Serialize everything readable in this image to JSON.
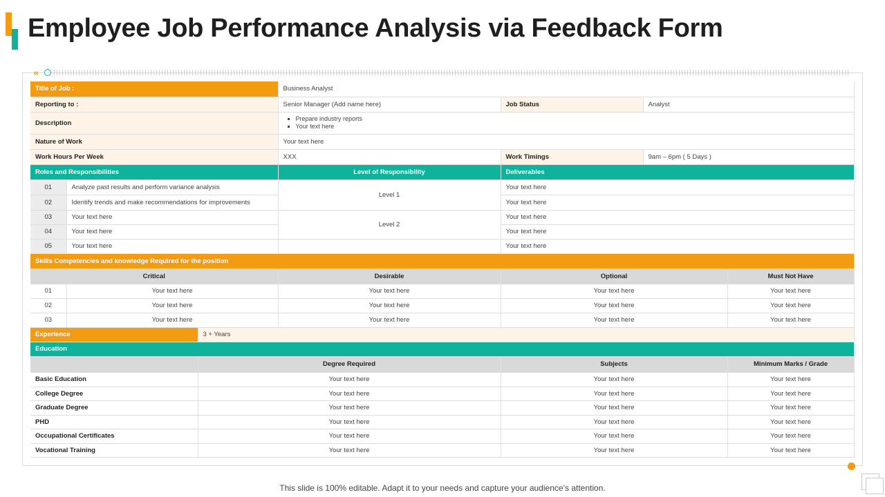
{
  "title": "Employee Job Performance Analysis via Feedback Form",
  "job": {
    "title_label": "Title of Job :",
    "title_value": "Business Analyst",
    "reporting_label": "Reporting to :",
    "reporting_value": "Senior Manager  (Add name here)",
    "status_label": "Job Status",
    "status_value": "Analyst",
    "description_label": "Description",
    "description_items": [
      "Prepare  industry reports",
      "Your text here"
    ],
    "nature_label": "Nature of Work",
    "nature_value": "Your text here",
    "hours_label": "Work Hours Per Week",
    "hours_value": "XXX",
    "timings_label": "Work Timings",
    "timings_value": "9am – 6pm ( 5 Days )"
  },
  "roles": {
    "header": "Roles and Responsibilities",
    "level_header": "Level of Responsibility",
    "deliverables_header": "Deliverables",
    "rows": [
      {
        "num": "01",
        "text": "Analyze past results and perform variance analysis",
        "deliverable": "Your text here"
      },
      {
        "num": "02",
        "text": "Identify trends and make recommendations  for improvements",
        "deliverable": "Your text here"
      },
      {
        "num": "03",
        "text": "Your text here",
        "deliverable": "Your text here"
      },
      {
        "num": "04",
        "text": "Your text here",
        "deliverable": "Your text here"
      },
      {
        "num": "05",
        "text": "Your text here",
        "deliverable": "Your text here"
      }
    ],
    "level_1": "Level 1",
    "level_2": "Level 2"
  },
  "skills": {
    "header": "Skills Competencies and knowledge Required for the position",
    "columns": [
      "Critical",
      "Desirable",
      "Optional",
      "Must Not Have"
    ],
    "rows": [
      {
        "num": "01",
        "cells": [
          "Your text here",
          "Your text here",
          "Your text here",
          "Your text here"
        ]
      },
      {
        "num": "02",
        "cells": [
          "Your text here",
          "Your text here",
          "Your text here",
          "Your text here"
        ]
      },
      {
        "num": "03",
        "cells": [
          "Your text here",
          "Your text here",
          "Your text here",
          "Your text here"
        ]
      }
    ]
  },
  "experience": {
    "label": "Experience",
    "value": "3 + Years"
  },
  "education": {
    "header": "Education",
    "columns": [
      "Degree Required",
      "Subjects",
      "Minimum Marks / Grade"
    ],
    "rows": [
      {
        "label": "Basic Education",
        "cells": [
          "Your text here",
          "Your text here",
          "Your text here"
        ]
      },
      {
        "label": "College Degree",
        "cells": [
          "Your text here",
          "Your text here",
          "Your text here"
        ]
      },
      {
        "label": "Graduate Degree",
        "cells": [
          "Your text here",
          "Your text here",
          "Your text here"
        ]
      },
      {
        "label": "PHD",
        "cells": [
          "Your text here",
          "Your text here",
          "Your text here"
        ]
      },
      {
        "label": "Occupational Certificates",
        "cells": [
          "Your text here",
          "Your text here",
          "Your text here"
        ]
      },
      {
        "label": "Vocational Training",
        "cells": [
          "Your text here",
          "Your text here",
          "Your text here"
        ]
      }
    ]
  },
  "footer": "This slide is 100% editable. Adapt it to your needs and capture your audience’s attention.",
  "colors": {
    "accent_orange": "#f39c12",
    "accent_teal": "#0fb29b",
    "label_bg": "#fdf3e6",
    "subheader_bg": "#d9d9d9"
  }
}
